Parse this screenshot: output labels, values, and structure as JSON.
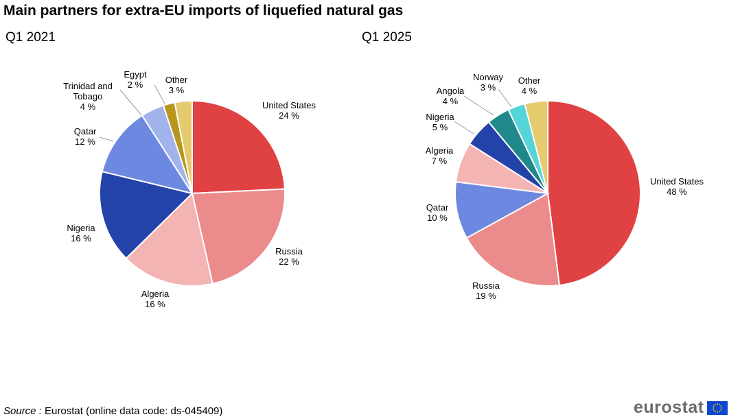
{
  "title": "Main partners for extra-EU imports of liquefied natural gas",
  "source": {
    "label": "Source :",
    "text": "Eurostat (online data code: ds-045409)"
  },
  "logo": {
    "text": "eurostat",
    "icon": "eu-flag-icon"
  },
  "chart_data": [
    {
      "type": "pie",
      "title": "Q1 2021",
      "start": "12 o'clock",
      "direction": "clockwise",
      "slices": [
        {
          "label": "United States",
          "value_label": "24 %",
          "value": 24,
          "color": "#e04142"
        },
        {
          "label": "Russia",
          "value_label": "22 %",
          "value": 22,
          "color": "#ec8b8b"
        },
        {
          "label": "Algeria",
          "value_label": "16 %",
          "value": 16,
          "color": "#f4b4b4"
        },
        {
          "label": "Nigeria",
          "value_label": "16 %",
          "value": 16,
          "color": "#2443a9"
        },
        {
          "label": "Qatar",
          "value_label": "12 %",
          "value": 12,
          "color": "#6d88e0"
        },
        {
          "label": "Trinidad and Tobago",
          "label_lines": [
            "Trinidad and",
            "Tobago"
          ],
          "value_label": "4 %",
          "value": 4,
          "color": "#a2b3eb"
        },
        {
          "label": "Egypt",
          "value_label": "2 %",
          "value": 2,
          "color": "#b8961e"
        },
        {
          "label": "Other",
          "value_label": "3 %",
          "value": 3,
          "color": "#e5cb6d"
        }
      ]
    },
    {
      "type": "pie",
      "title": "Q1 2025",
      "start": "12 o'clock",
      "direction": "clockwise",
      "slices": [
        {
          "label": "United States",
          "value_label": "48 %",
          "value": 48,
          "color": "#e04142"
        },
        {
          "label": "Russia",
          "value_label": "19 %",
          "value": 19,
          "color": "#ec8b8b"
        },
        {
          "label": "Qatar",
          "value_label": "10 %",
          "value": 10,
          "color": "#6d88e0"
        },
        {
          "label": "Algeria",
          "value_label": "7 %",
          "value": 7,
          "color": "#f4b4b4"
        },
        {
          "label": "Nigeria",
          "value_label": "5 %",
          "value": 5,
          "color": "#2443a9"
        },
        {
          "label": "Angola",
          "value_label": "4 %",
          "value": 4,
          "color": "#20878a"
        },
        {
          "label": "Norway",
          "value_label": "3 %",
          "value": 3,
          "color": "#55d5d9"
        },
        {
          "label": "Other",
          "value_label": "4 %",
          "value": 4,
          "color": "#e5cb6d"
        }
      ]
    }
  ]
}
